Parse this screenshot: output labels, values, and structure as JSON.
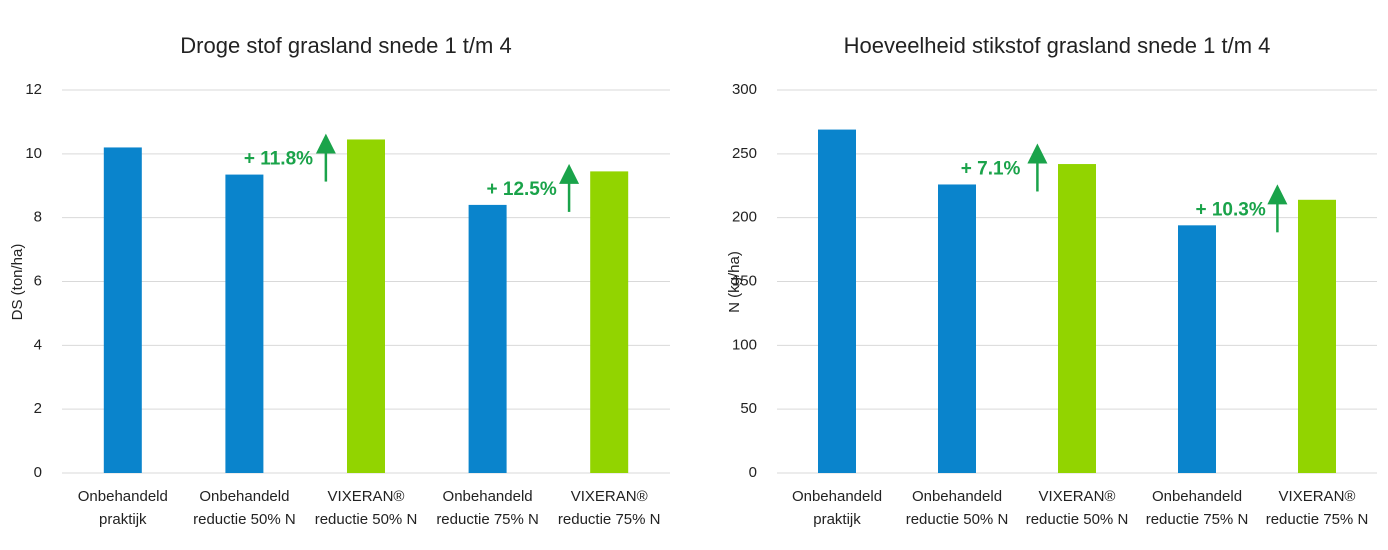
{
  "chart_data": [
    {
      "type": "bar",
      "title": "Droge stof grasland snede 1 t/m 4",
      "y_label": "DS (ton/ha)",
      "categories": [
        [
          "Onbehandeld",
          "praktijk"
        ],
        [
          "Onbehandeld",
          "reductie 50% N"
        ],
        [
          "VIXERAN®",
          "reductie 50% N"
        ],
        [
          "Onbehandeld",
          "reductie 75% N"
        ],
        [
          "VIXERAN®",
          "reductie 75% N"
        ]
      ],
      "values": [
        10.2,
        9.35,
        10.45,
        8.4,
        9.45
      ],
      "colors": [
        "#0a84cc",
        "#0a84cc",
        "#92d400",
        "#0a84cc",
        "#92d400"
      ],
      "ylim": [
        0,
        12
      ],
      "yticks": [
        0,
        2,
        4,
        6,
        8,
        10,
        12
      ],
      "grid": true,
      "annotations": [
        "+ 11.8%",
        "+ 12.5%"
      ]
    },
    {
      "type": "bar",
      "title": "Hoeveelheid stikstof grasland snede 1 t/m 4",
      "y_label": "N (kg/ha)",
      "categories": [
        [
          "Onbehandeld",
          "praktijk"
        ],
        [
          "Onbehandeld",
          "reductie 50% N"
        ],
        [
          "VIXERAN®",
          "reductie 50% N"
        ],
        [
          "Onbehandeld",
          "reductie 75% N"
        ],
        [
          "VIXERAN®",
          "reductie 75% N"
        ]
      ],
      "values": [
        269,
        226,
        242,
        194,
        214
      ],
      "colors": [
        "#0a84cc",
        "#0a84cc",
        "#92d400",
        "#0a84cc",
        "#92d400"
      ],
      "ylim": [
        0,
        300
      ],
      "yticks": [
        0,
        50,
        100,
        150,
        200,
        250,
        300
      ],
      "grid": true,
      "annotations": [
        "+ 7.1%",
        "+ 10.3%"
      ]
    }
  ]
}
